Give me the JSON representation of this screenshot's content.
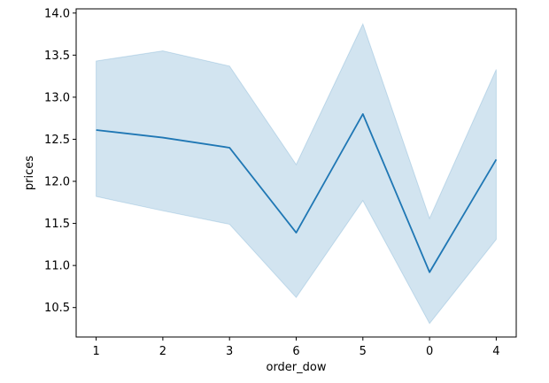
{
  "chart_data": {
    "type": "line",
    "title": "",
    "xlabel": "order_dow",
    "ylabel": "prices",
    "categories": [
      "1",
      "2",
      "3",
      "6",
      "5",
      "0",
      "4"
    ],
    "series": [
      {
        "values": [
          12.61,
          12.52,
          12.4,
          11.39,
          12.8,
          10.92,
          12.26
        ],
        "ci_lower": [
          11.82,
          11.65,
          11.49,
          10.62,
          11.77,
          10.31,
          11.31
        ],
        "ci_upper": [
          13.43,
          13.55,
          13.37,
          12.2,
          13.87,
          11.56,
          13.33
        ],
        "color": "#1f77b4",
        "band_color": "#1f77b4"
      }
    ],
    "ylim": [
      10.15,
      14.05
    ],
    "yticks": [
      "10.5",
      "11.0",
      "11.5",
      "12.0",
      "12.5",
      "13.0",
      "13.5",
      "14.0"
    ],
    "grid": false,
    "legend": "none"
  }
}
